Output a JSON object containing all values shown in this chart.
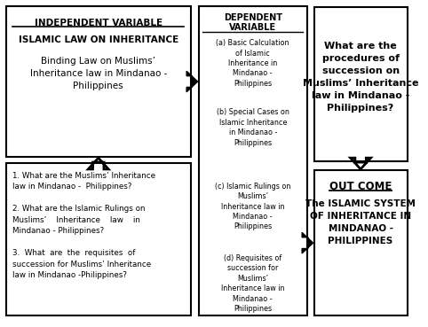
{
  "box1_title": "INDEPENDENT VARIABLE",
  "box1_line2": "ISLAMIC LAW ON INHERITANCE",
  "box1_line3": "Binding Law on Muslims’\nInheritance law in Mindanao -\nPhilippines",
  "box2_title": "DEPENDENT\nVARIABLE",
  "box2_items": [
    "(a) Basic Calculation\nof Islamic\nInheritance in\nMindanao -\nPhilippines",
    "(b) Special Cases on\nIslamic Inheritance\nin Mindanao -\nPhilippines",
    "(c) Islamic Rulings on\nMuslims’\nInheritance law in\nMindanao -\nPhilippines",
    "(d) Requisites of\nsuccession for\nMuslims’\nInheritance law in\nMindanao -\nPhilippines"
  ],
  "box3_text": "What are the\nprocedures of\nsuccession on\nMuslims’ Inheritance\nlaw in Mindanao -\nPhilippines?",
  "box4_title": "OUT COME",
  "box4_line2": "The ISLAMIC SYSTEM\nOF INHERITANCE IN\nMINDANAO -\nPHILIPPINES",
  "box_bottom_text": "1. What are the Muslims’ Inheritance\nlaw in Mindanao -  Philippines?\n\n2. What are the Islamic Rulings on\nMuslims’    Inheritance    law    in\nMindanao - Philippines?\n\n3.  What  are  the  requisites  of\nsuccession for Muslims’ Inheritance\nlaw in Mindanao -Philippines?",
  "bg_color": "#ffffff",
  "box_edge_color": "#000000",
  "text_color": "#000000"
}
